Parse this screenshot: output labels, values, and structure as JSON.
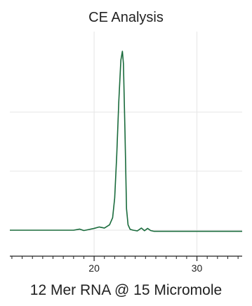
{
  "chart_data": {
    "type": "line",
    "title": "CE Analysis",
    "xlabel": "12 Mer RNA @ 15 Micromole",
    "ylabel": "",
    "xlim": [
      11.8,
      34.4
    ],
    "ylim": [
      -0.08,
      1.0
    ],
    "x_ticks_major": [
      20,
      30
    ],
    "x_ticks_minor": [
      12,
      13,
      14,
      15,
      16,
      17,
      18,
      19,
      21,
      22,
      23,
      24,
      25,
      26,
      27,
      28,
      29,
      31,
      32,
      33,
      34
    ],
    "y_grid": [
      0.0,
      0.33,
      0.66
    ],
    "grid": true,
    "line_color": "#1a6b3c",
    "series": [
      {
        "x": [
          11.8,
          18.0,
          18.6,
          19.0,
          19.5,
          20.0,
          20.5,
          21.0,
          21.5,
          21.8,
          22.0,
          22.2,
          22.4,
          22.6,
          22.75,
          22.85,
          23.0,
          23.15,
          23.3,
          23.5,
          23.8,
          24.2,
          24.6,
          24.9,
          25.2,
          25.5,
          25.8,
          26.5,
          34.4
        ],
        "y": [
          0.0,
          0.0,
          0.006,
          -0.002,
          0.004,
          0.01,
          0.018,
          0.012,
          0.03,
          0.07,
          0.18,
          0.42,
          0.72,
          0.95,
          1.0,
          0.93,
          0.55,
          0.12,
          0.03,
          0.005,
          0.0,
          -0.004,
          0.012,
          -0.003,
          0.01,
          -0.002,
          -0.006,
          -0.006,
          -0.006
        ]
      }
    ]
  }
}
